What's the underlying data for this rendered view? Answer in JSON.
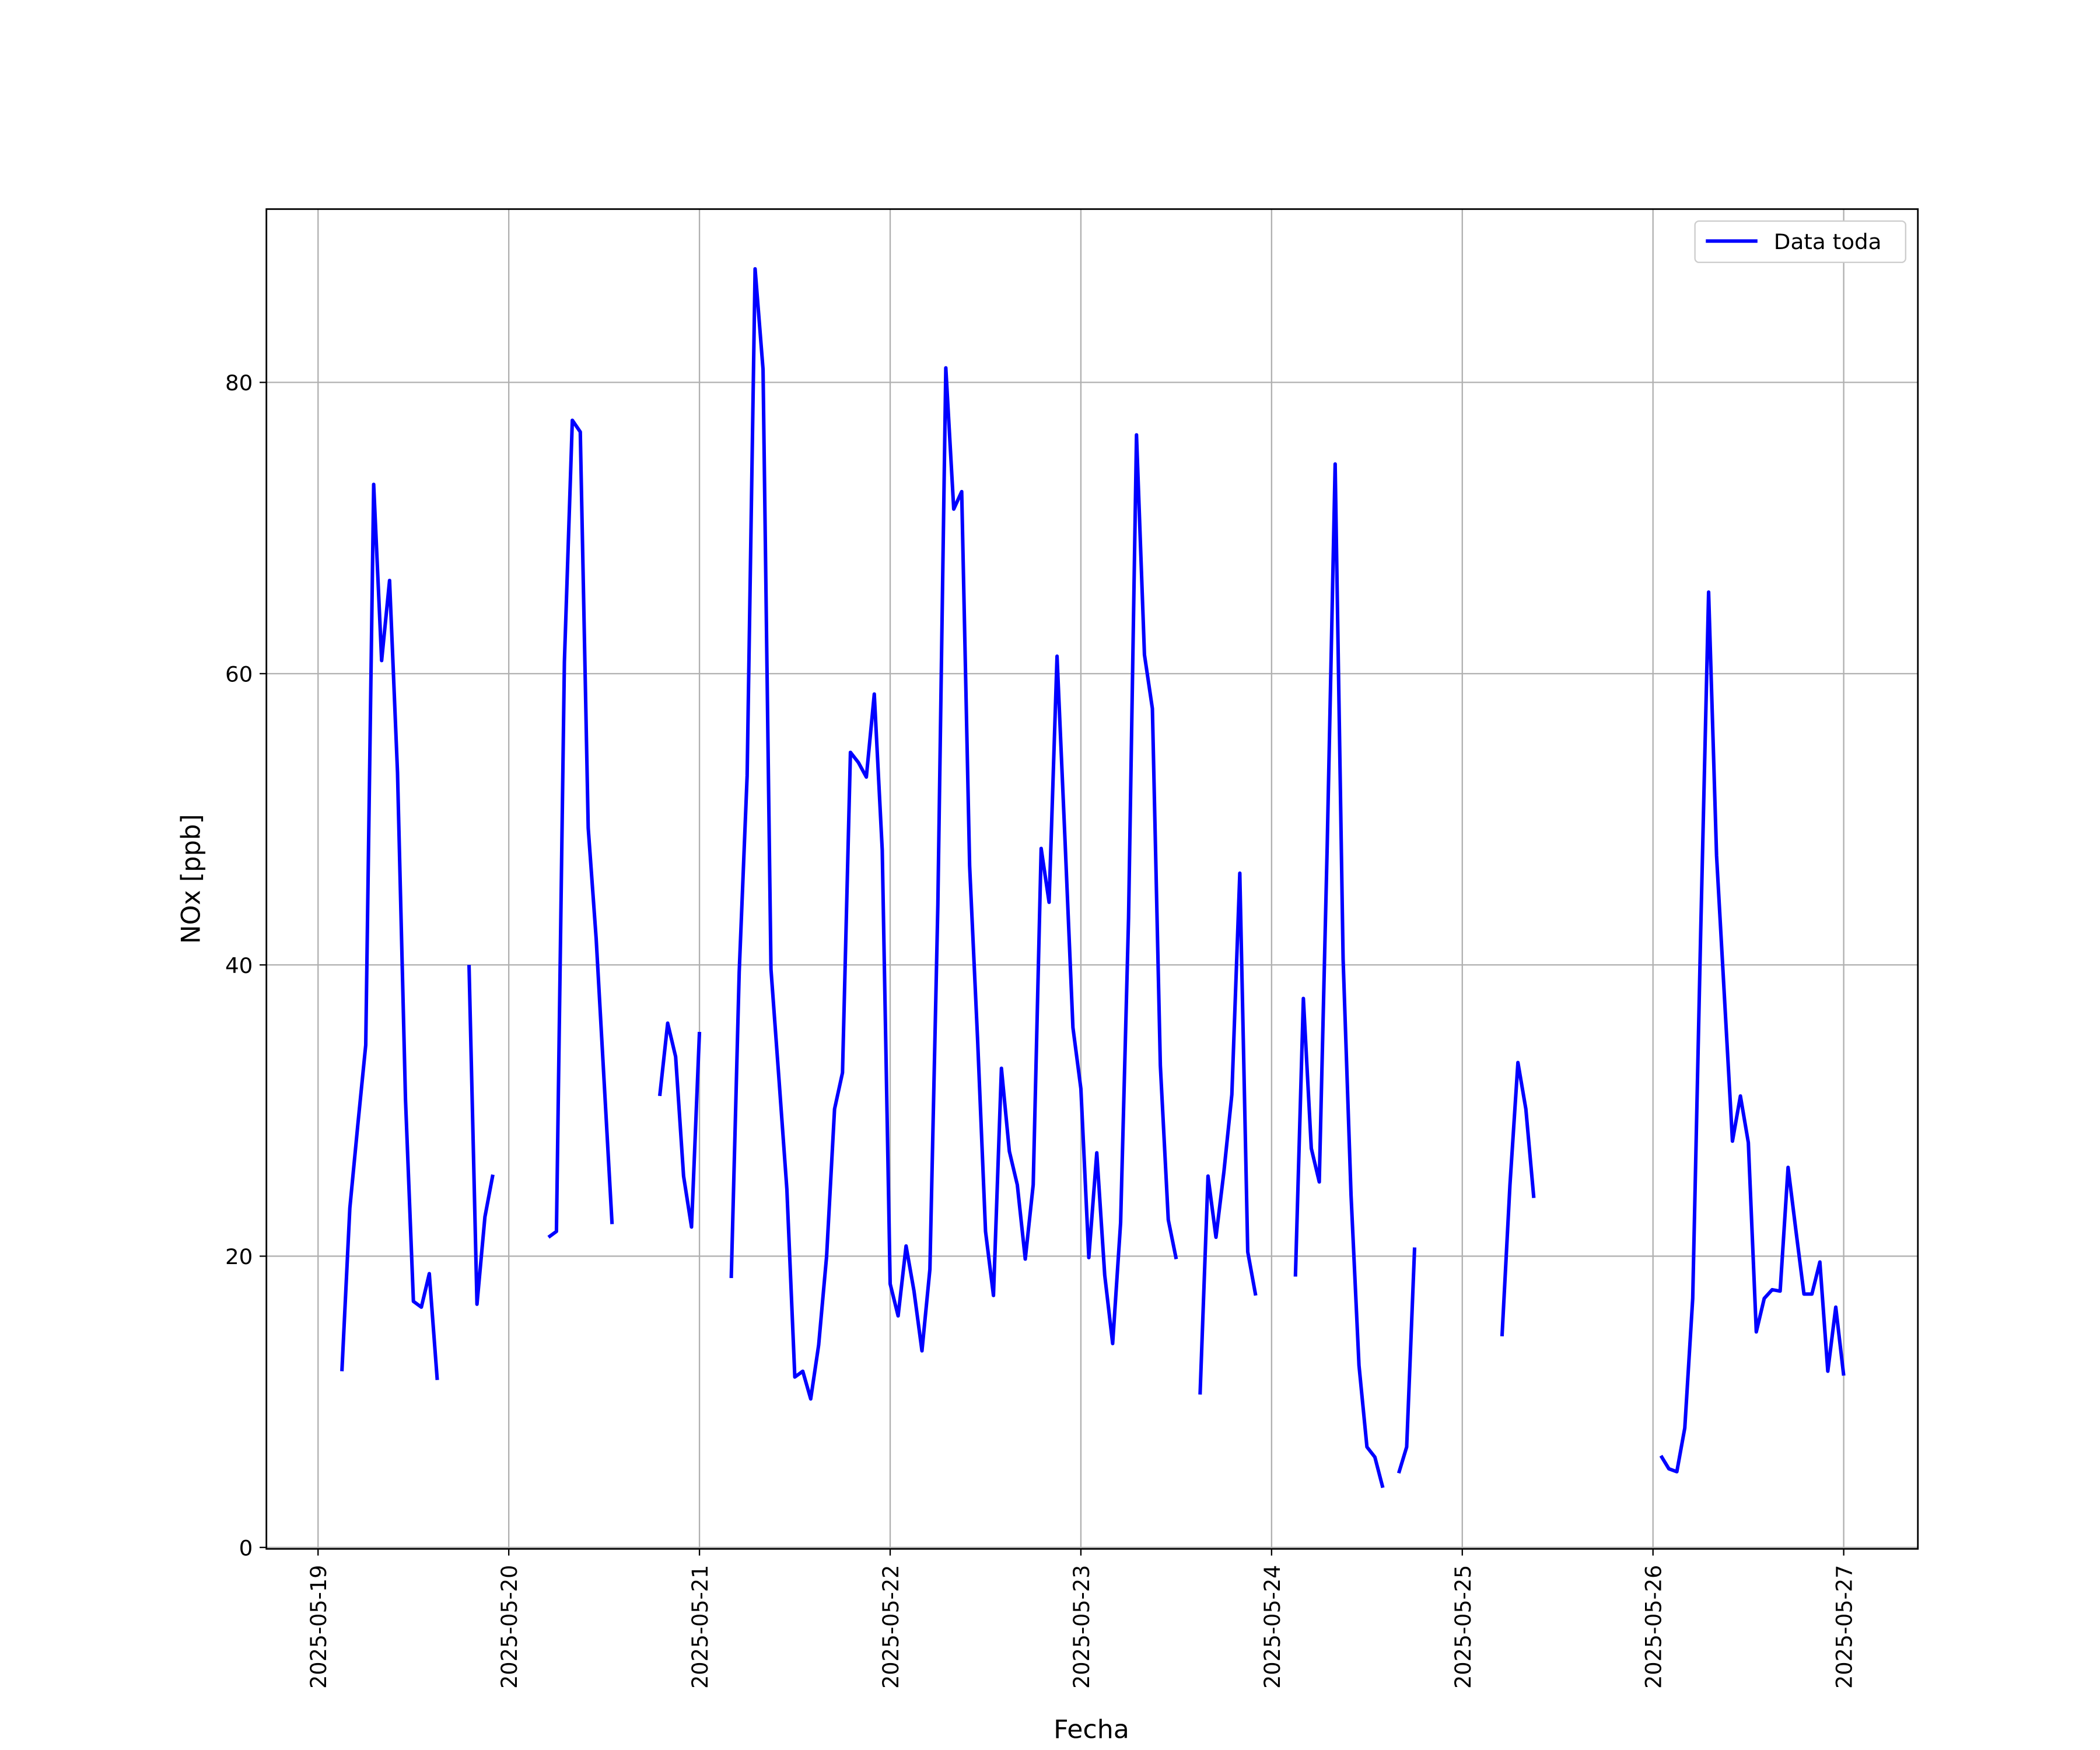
{
  "chart_data": {
    "type": "line",
    "xlabel": "Fecha",
    "ylabel": "NOx [ppb]",
    "legend": "upper right",
    "grid": true,
    "xlim": [
      "2025-05-18T17:30",
      "2025-05-27T09:20"
    ],
    "xticks": [
      "2025-05-19",
      "2025-05-20",
      "2025-05-21",
      "2025-05-22",
      "2025-05-23",
      "2025-05-24",
      "2025-05-25",
      "2025-05-26",
      "2025-05-27"
    ],
    "ylim": [
      -0.1,
      91.9
    ],
    "yticks": [
      0,
      20,
      40,
      60,
      80
    ],
    "x": [
      "2025-05-19T03:00",
      "2025-05-19T04:00",
      "2025-05-19T05:00",
      "2025-05-19T06:00",
      "2025-05-19T07:00",
      "2025-05-19T08:00",
      "2025-05-19T09:00",
      "2025-05-19T10:00",
      "2025-05-19T11:00",
      "2025-05-19T12:00",
      "2025-05-19T13:00",
      "2025-05-19T14:00",
      "2025-05-19T15:00",
      "2025-05-19T16:00",
      "2025-05-19T17:00",
      "2025-05-19T18:00",
      "2025-05-19T19:00",
      "2025-05-19T20:00",
      "2025-05-19T21:00",
      "2025-05-19T22:00",
      "2025-05-19T23:00",
      "2025-05-20T00:00",
      "2025-05-20T01:00",
      "2025-05-20T02:00",
      "2025-05-20T03:00",
      "2025-05-20T04:00",
      "2025-05-20T05:00",
      "2025-05-20T06:00",
      "2025-05-20T07:00",
      "2025-05-20T08:00",
      "2025-05-20T09:00",
      "2025-05-20T10:00",
      "2025-05-20T11:00",
      "2025-05-20T12:00",
      "2025-05-20T13:00",
      "2025-05-20T14:00",
      "2025-05-20T15:00",
      "2025-05-20T16:00",
      "2025-05-20T17:00",
      "2025-05-20T18:00",
      "2025-05-20T19:00",
      "2025-05-20T20:00",
      "2025-05-20T21:00",
      "2025-05-20T22:00",
      "2025-05-20T23:00",
      "2025-05-21T00:00",
      "2025-05-21T01:00",
      "2025-05-21T02:00",
      "2025-05-21T03:00",
      "2025-05-21T04:00",
      "2025-05-21T05:00",
      "2025-05-21T06:00",
      "2025-05-21T07:00",
      "2025-05-21T08:00",
      "2025-05-21T09:00",
      "2025-05-21T10:00",
      "2025-05-21T11:00",
      "2025-05-21T12:00",
      "2025-05-21T13:00",
      "2025-05-21T14:00",
      "2025-05-21T15:00",
      "2025-05-21T16:00",
      "2025-05-21T17:00",
      "2025-05-21T18:00",
      "2025-05-21T19:00",
      "2025-05-21T20:00",
      "2025-05-21T21:00",
      "2025-05-21T22:00",
      "2025-05-21T23:00",
      "2025-05-22T00:00",
      "2025-05-22T01:00",
      "2025-05-22T02:00",
      "2025-05-22T03:00",
      "2025-05-22T04:00",
      "2025-05-22T05:00",
      "2025-05-22T06:00",
      "2025-05-22T07:00",
      "2025-05-22T08:00",
      "2025-05-22T09:00",
      "2025-05-22T10:00",
      "2025-05-22T11:00",
      "2025-05-22T12:00",
      "2025-05-22T13:00",
      "2025-05-22T14:00",
      "2025-05-22T15:00",
      "2025-05-22T16:00",
      "2025-05-22T17:00",
      "2025-05-22T18:00",
      "2025-05-22T19:00",
      "2025-05-22T20:00",
      "2025-05-22T21:00",
      "2025-05-22T22:00",
      "2025-05-22T23:00",
      "2025-05-23T00:00",
      "2025-05-23T01:00",
      "2025-05-23T02:00",
      "2025-05-23T03:00",
      "2025-05-23T04:00",
      "2025-05-23T05:00",
      "2025-05-23T06:00",
      "2025-05-23T07:00",
      "2025-05-23T08:00",
      "2025-05-23T09:00",
      "2025-05-23T10:00",
      "2025-05-23T11:00",
      "2025-05-23T12:00",
      "2025-05-23T13:00",
      "2025-05-23T14:00",
      "2025-05-23T15:00",
      "2025-05-23T16:00",
      "2025-05-23T17:00",
      "2025-05-23T18:00",
      "2025-05-23T19:00",
      "2025-05-23T20:00",
      "2025-05-23T21:00",
      "2025-05-23T22:00",
      "2025-05-23T23:00",
      "2025-05-24T00:00",
      "2025-05-24T01:00",
      "2025-05-24T02:00",
      "2025-05-24T03:00",
      "2025-05-24T04:00",
      "2025-05-24T05:00",
      "2025-05-24T06:00",
      "2025-05-24T07:00",
      "2025-05-24T08:00",
      "2025-05-24T09:00",
      "2025-05-24T10:00",
      "2025-05-24T11:00",
      "2025-05-24T12:00",
      "2025-05-24T13:00",
      "2025-05-24T14:00",
      "2025-05-24T15:00",
      "2025-05-24T16:00",
      "2025-05-24T17:00",
      "2025-05-24T18:00",
      "2025-05-24T19:00",
      "2025-05-24T20:00",
      "2025-05-24T21:00",
      "2025-05-24T22:00",
      "2025-05-24T23:00",
      "2025-05-25T00:00",
      "2025-05-25T01:00",
      "2025-05-25T02:00",
      "2025-05-25T03:00",
      "2025-05-25T04:00",
      "2025-05-25T05:00",
      "2025-05-25T06:00",
      "2025-05-25T07:00",
      "2025-05-25T08:00",
      "2025-05-25T09:00",
      "2025-05-25T10:00",
      "2025-05-25T11:00",
      "2025-05-25T12:00",
      "2025-05-25T13:00",
      "2025-05-25T14:00",
      "2025-05-25T15:00",
      "2025-05-25T16:00",
      "2025-05-25T17:00",
      "2025-05-25T18:00",
      "2025-05-25T19:00",
      "2025-05-25T20:00",
      "2025-05-25T21:00",
      "2025-05-25T22:00",
      "2025-05-25T23:00",
      "2025-05-26T00:00",
      "2025-05-26T01:00",
      "2025-05-26T02:00",
      "2025-05-26T03:00",
      "2025-05-26T04:00",
      "2025-05-26T05:00",
      "2025-05-26T06:00",
      "2025-05-26T07:00",
      "2025-05-26T08:00",
      "2025-05-26T09:00",
      "2025-05-26T10:00",
      "2025-05-26T11:00",
      "2025-05-26T12:00",
      "2025-05-26T13:00",
      "2025-05-26T14:00",
      "2025-05-26T15:00",
      "2025-05-26T16:00",
      "2025-05-26T17:00",
      "2025-05-26T18:00",
      "2025-05-26T19:00",
      "2025-05-26T20:00",
      "2025-05-26T21:00",
      "2025-05-26T22:00",
      "2025-05-26T23:00",
      "2025-05-27T00:00"
    ],
    "series": [
      {
        "name": "Data toda",
        "color": "#0000ff",
        "values": [
          12.1,
          23.3,
          29.0,
          34.5,
          73.0,
          60.9,
          66.4,
          53.2,
          30.8,
          16.9,
          16.5,
          18.8,
          11.5,
          null,
          null,
          null,
          40.0,
          16.7,
          22.7,
          25.6,
          null,
          null,
          null,
          null,
          null,
          null,
          21.3,
          21.7,
          60.8,
          77.4,
          76.6,
          49.4,
          41.8,
          32.0,
          22.2,
          null,
          null,
          null,
          null,
          null,
          31.0,
          36.0,
          33.7,
          25.5,
          22.0,
          35.4,
          null,
          null,
          null,
          18.5,
          39.5,
          53.0,
          87.8,
          80.9,
          39.7,
          32.2,
          24.6,
          11.7,
          12.1,
          10.2,
          13.9,
          20.0,
          30.1,
          32.6,
          54.6,
          53.9,
          52.9,
          58.6,
          47.9,
          18.1,
          15.9,
          20.7,
          17.6,
          13.5,
          19.1,
          44.1,
          81.0,
          71.3,
          72.5,
          46.8,
          34.9,
          21.7,
          17.3,
          32.9,
          27.2,
          24.9,
          19.8,
          24.9,
          48.0,
          44.3,
          61.2,
          48.6,
          35.7,
          31.5,
          19.9,
          27.1,
          18.7,
          14.0,
          22.3,
          43.2,
          76.4,
          61.3,
          57.6,
          33.1,
          22.5,
          19.8,
          null,
          null,
          10.5,
          25.5,
          21.3,
          25.8,
          31.1,
          46.3,
          20.3,
          17.3,
          null,
          null,
          null,
          null,
          18.6,
          37.7,
          27.4,
          25.1,
          48.2,
          74.4,
          40.4,
          24.2,
          12.5,
          6.9,
          6.2,
          4.1,
          null,
          5.1,
          6.9,
          20.6,
          null,
          null,
          null,
          null,
          null,
          null,
          null,
          null,
          null,
          null,
          14.5,
          24.9,
          33.3,
          30.1,
          24.0,
          null,
          null,
          null,
          null,
          null,
          null,
          null,
          null,
          null,
          null,
          null,
          null,
          null,
          null,
          null,
          6.3,
          5.4,
          5.2,
          8.2,
          17.1,
          42.2,
          65.6,
          47.5,
          37.7,
          27.9,
          31.0,
          27.8,
          14.8,
          17.1,
          17.7,
          17.6,
          26.1,
          21.7,
          17.4,
          17.4,
          19.6,
          12.1,
          16.5,
          11.8
        ]
      }
    ]
  }
}
